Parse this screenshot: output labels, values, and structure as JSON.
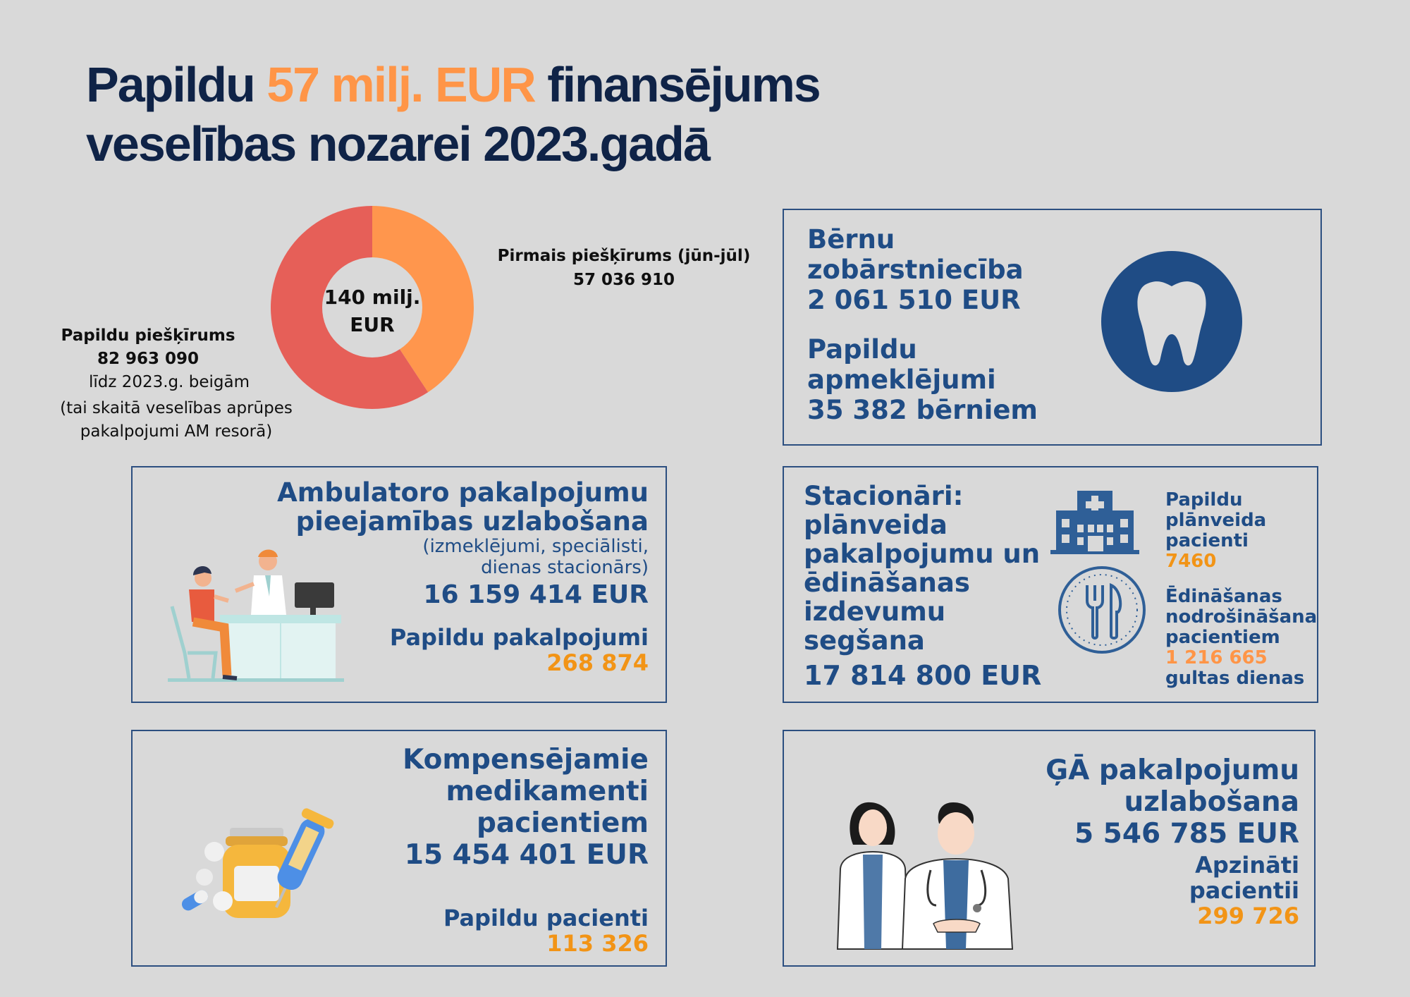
{
  "title": {
    "prefix": "Papildu ",
    "accent": "57 milj. EUR",
    "suffix": " finansējums",
    "line2": "veselības nozarei 2023.gadā"
  },
  "colors": {
    "background": "#d9d9d9",
    "navy": "#1f4c85",
    "title_dark": "#0f2347",
    "orange": "#f29416",
    "accent_orange": "#ff9547",
    "donut_orange": "#ff964d",
    "donut_red": "#e65f58"
  },
  "chart_data": {
    "type": "pie",
    "center_label": [
      "140 milj.",
      "EUR"
    ],
    "slices": [
      {
        "label": "Pirmais piešķīrums (jūn-jūl)",
        "value": 57036910,
        "display_value": "57 036 910",
        "color": "#ff964d"
      },
      {
        "label": "Papildu piešķīrums",
        "value": 82963090,
        "display_value": "82 963 090",
        "color": "#e65f58"
      }
    ],
    "notes": [
      "līdz 2023.g. beigām",
      "(tai skaitā veselības aprūpes",
      "pakalpojumi AM resorā)"
    ]
  },
  "dental": {
    "title": "Bērnu zobārstniecība",
    "amount": "2 061 510 EUR",
    "sub": [
      "Papildu",
      "apmeklējumi",
      "35 382 bērniem"
    ],
    "icon": "tooth-icon"
  },
  "ambulatory": {
    "title": [
      "Ambulatoro pakalpojumu",
      "pieejamības uzlabošana"
    ],
    "note": [
      "(izmeklējumi, speciālisti,",
      "dienas stacionārs)"
    ],
    "amount": "16 159 414 EUR",
    "services_label": "Papildu pakalpojumi",
    "services_value": "268 874",
    "icon": "doctor-consultation-illustration"
  },
  "hospitals": {
    "title": [
      "Stacionāri:",
      "plānveida",
      "pakalpojumu un",
      "ēdināšanas",
      "izdevumu segšana"
    ],
    "amount": "17 814 800 EUR",
    "patients_label": [
      "Papildu",
      "plānveida",
      "pacienti"
    ],
    "patients_value": "7460",
    "meals_label": [
      "Ēdināšanas",
      "nodrošināšana",
      "pacientiem"
    ],
    "meals_value": "1 216 665",
    "meals_unit": "gultas dienas",
    "icons": [
      "hospital-icon",
      "fork-knife-icon"
    ]
  },
  "medicines": {
    "title": [
      "Kompensējamie medikamenti",
      "pacientiem"
    ],
    "amount": "15 454 401 EUR",
    "patients_label": "Papildu pacienti",
    "patients_value": "113 326",
    "icon": "pills-syringe-illustration"
  },
  "gp": {
    "title": [
      "ĢĀ pakalpojumu",
      "uzlabošana"
    ],
    "amount": "5 546 785 EUR",
    "patients_label": [
      "Apzināti",
      "pacientii"
    ],
    "patients_value": "299 726",
    "icon": "doctors-illustration"
  }
}
